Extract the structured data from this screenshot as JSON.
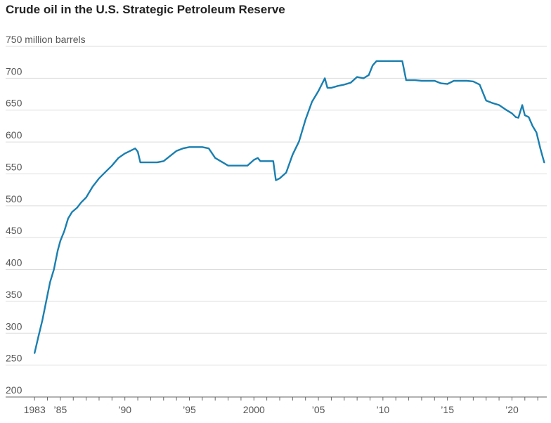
{
  "chart_data": {
    "type": "line",
    "title": "Crude oil in the U.S. Strategic Petroleum Reserve",
    "unit_label": "million barrels",
    "xlabel": "",
    "ylabel": "",
    "xlim": [
      1982.5,
      2022.7
    ],
    "ylim": [
      200,
      750
    ],
    "y_ticks": [
      {
        "value": 750,
        "label": "750"
      },
      {
        "value": 700,
        "label": "700"
      },
      {
        "value": 650,
        "label": "650"
      },
      {
        "value": 600,
        "label": "600"
      },
      {
        "value": 550,
        "label": "550"
      },
      {
        "value": 500,
        "label": "500"
      },
      {
        "value": 450,
        "label": "450"
      },
      {
        "value": 400,
        "label": "400"
      },
      {
        "value": 350,
        "label": "350"
      },
      {
        "value": 300,
        "label": "300"
      },
      {
        "value": 250,
        "label": "250"
      },
      {
        "value": 200,
        "label": "200"
      }
    ],
    "x_ticks": [
      {
        "value": 1983,
        "label": "1983"
      },
      {
        "value": 1985,
        "label": "’85"
      },
      {
        "value": 1990,
        "label": "’90"
      },
      {
        "value": 1995,
        "label": "’95"
      },
      {
        "value": 2000,
        "label": "2000"
      },
      {
        "value": 2005,
        "label": "’05"
      },
      {
        "value": 2010,
        "label": "’10"
      },
      {
        "value": 2015,
        "label": "’15"
      },
      {
        "value": 2020,
        "label": "’20"
      }
    ],
    "grid": true,
    "color": "#1a7fb0",
    "series": [
      {
        "x": [
          1983.0,
          1983.3,
          1983.6,
          1983.9,
          1984.2,
          1984.5,
          1984.8,
          1985.0,
          1985.3,
          1985.6,
          1985.9,
          1986.3,
          1986.6,
          1987.0,
          1987.5,
          1988.0,
          1988.5,
          1989.0,
          1989.5,
          1990.0,
          1990.5,
          1990.8,
          1991.0,
          1991.2,
          1992.0,
          1992.5,
          1993.0,
          1993.5,
          1994.0,
          1994.5,
          1995.0,
          1995.5,
          1996.0,
          1996.5,
          1997.0,
          1998.0,
          1999.0,
          1999.5,
          2000.0,
          2000.3,
          2000.5,
          2001.0,
          2001.5,
          2001.7,
          2002.0,
          2002.5,
          2003.0,
          2003.5,
          2004.0,
          2004.5,
          2005.0,
          2005.5,
          2005.7,
          2006.0,
          2006.5,
          2007.0,
          2007.5,
          2008.0,
          2008.5,
          2008.9,
          2009.2,
          2009.5,
          2010.0,
          2010.5,
          2011.0,
          2011.5,
          2011.8,
          2012.5,
          2013.0,
          2013.5,
          2014.0,
          2014.5,
          2015.0,
          2015.5,
          2016.0,
          2016.5,
          2017.0,
          2017.5,
          2017.8,
          2018.0,
          2018.5,
          2019.0,
          2019.5,
          2020.0,
          2020.3,
          2020.5,
          2020.8,
          2021.0,
          2021.3,
          2021.6,
          2021.9,
          2022.2,
          2022.5
        ],
        "values": [
          269,
          295,
          320,
          350,
          380,
          400,
          430,
          445,
          460,
          480,
          490,
          497,
          505,
          513,
          530,
          543,
          553,
          563,
          575,
          582,
          587,
          590,
          585,
          568,
          568,
          568,
          570,
          578,
          586,
          590,
          592,
          592,
          592,
          590,
          575,
          563,
          563,
          563,
          572,
          575,
          570,
          570,
          570,
          540,
          543,
          552,
          580,
          601,
          635,
          663,
          680,
          700,
          685,
          685,
          688,
          690,
          693,
          702,
          700,
          705,
          720,
          727,
          727,
          727,
          727,
          727,
          697,
          697,
          696,
          696,
          696,
          692,
          691,
          696,
          696,
          696,
          695,
          690,
          675,
          665,
          661,
          658,
          651,
          645,
          639,
          638,
          658,
          642,
          639,
          625,
          615,
          590,
          568
        ]
      }
    ]
  }
}
